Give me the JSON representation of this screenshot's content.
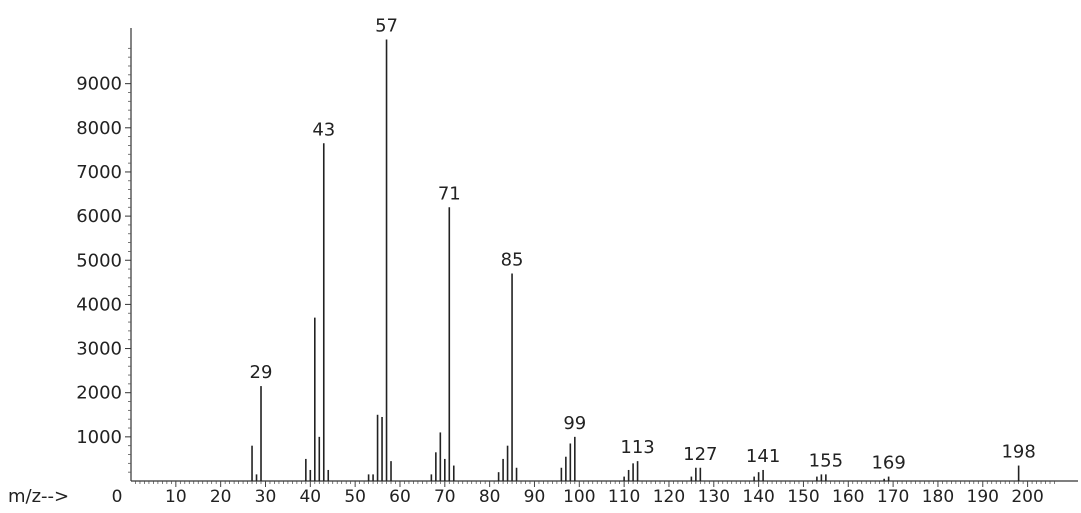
{
  "chart_data": {
    "type": "bar",
    "title": "",
    "xlabel": "m/z-->",
    "ylabel": "",
    "xlim": [
      0,
      207
    ],
    "ylim": [
      0,
      10000
    ],
    "grid": false,
    "x_ticks": [
      0,
      10,
      20,
      30,
      40,
      50,
      60,
      70,
      80,
      90,
      100,
      110,
      120,
      130,
      140,
      150,
      160,
      170,
      180,
      190,
      200
    ],
    "y_ticks": [
      1000,
      2000,
      3000,
      4000,
      5000,
      6000,
      7000,
      8000,
      9000
    ],
    "peak_labels": [
      "29",
      "43",
      "57",
      "71",
      "85",
      "99",
      "113",
      "127",
      "141",
      "155",
      "169",
      "198"
    ],
    "series": [
      {
        "mz": [
          27,
          28,
          29,
          39,
          40,
          41,
          42,
          43,
          44,
          53,
          54,
          55,
          56,
          57,
          58,
          67,
          68,
          69,
          70,
          71,
          72,
          82,
          83,
          84,
          85,
          86,
          96,
          97,
          98,
          99,
          110,
          111,
          112,
          113,
          125,
          126,
          127,
          139,
          140,
          141,
          153,
          154,
          155,
          168,
          169,
          198
        ],
        "abundance": [
          800,
          150,
          2150,
          500,
          250,
          3700,
          1000,
          7650,
          250,
          150,
          150,
          1500,
          1450,
          10000,
          450,
          150,
          650,
          1100,
          500,
          6200,
          350,
          200,
          500,
          800,
          4700,
          300,
          300,
          550,
          850,
          1000,
          100,
          250,
          400,
          450,
          100,
          300,
          300,
          100,
          200,
          250,
          100,
          150,
          150,
          50,
          100,
          350
        ]
      }
    ]
  }
}
